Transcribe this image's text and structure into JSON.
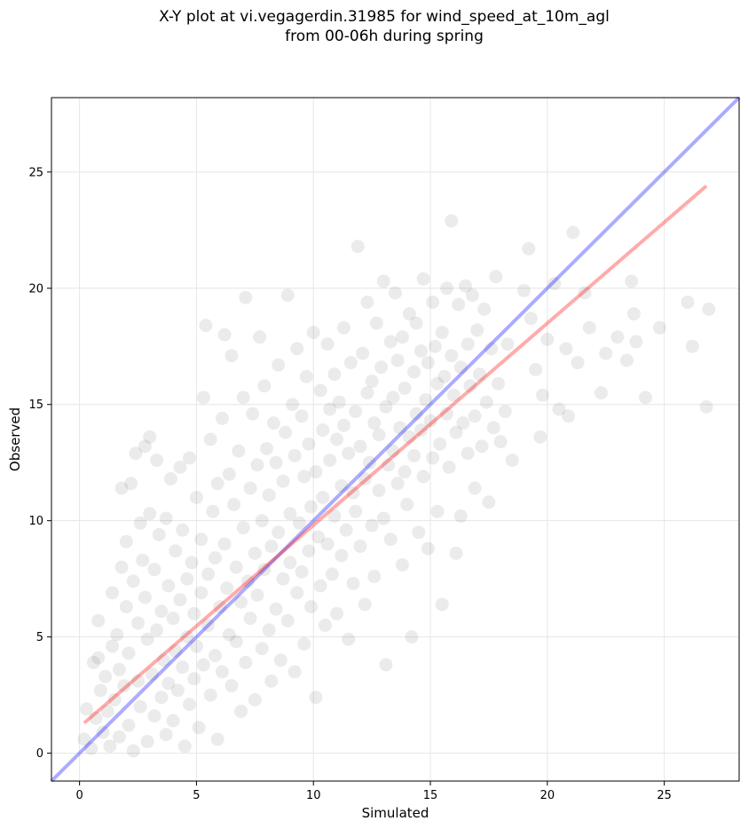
{
  "chart_data": {
    "type": "scatter",
    "title_lines": [
      "X-Y plot at vi.vegagerdin.31985 for wind_speed_at_10m_agl",
      "from 00-06h during spring"
    ],
    "xlabel": "Simulated",
    "ylabel": "Observed",
    "xlim": [
      -1.2,
      28.2
    ],
    "ylim": [
      -1.2,
      28.2
    ],
    "xticks": [
      0,
      5,
      10,
      15,
      20,
      25
    ],
    "yticks": [
      0,
      5,
      10,
      15,
      20,
      25
    ],
    "grid": true,
    "point_color": "#000000",
    "point_alpha": 0.08,
    "identity_line": {
      "color": "#0000ff",
      "x": [
        -1.2,
        28.2
      ],
      "y": [
        -1.2,
        28.2
      ]
    },
    "fit_line": {
      "color": "#ff0000",
      "x": [
        0.2,
        26.8
      ],
      "y": [
        1.3,
        24.4
      ]
    },
    "points": [
      [
        0.2,
        0.6
      ],
      [
        0.3,
        1.9
      ],
      [
        0.5,
        0.2
      ],
      [
        0.6,
        3.9
      ],
      [
        0.7,
        1.5
      ],
      [
        0.8,
        4.1
      ],
      [
        0.8,
        5.7
      ],
      [
        0.9,
        2.7
      ],
      [
        1.0,
        0.9
      ],
      [
        1.1,
        3.3
      ],
      [
        1.2,
        1.8
      ],
      [
        1.3,
        0.3
      ],
      [
        1.4,
        4.6
      ],
      [
        1.4,
        6.9
      ],
      [
        1.5,
        2.3
      ],
      [
        1.6,
        5.1
      ],
      [
        1.7,
        3.6
      ],
      [
        1.7,
        0.7
      ],
      [
        1.8,
        8.0
      ],
      [
        1.8,
        11.4
      ],
      [
        1.9,
        2.9
      ],
      [
        2.0,
        6.3
      ],
      [
        2.0,
        9.1
      ],
      [
        2.1,
        4.3
      ],
      [
        2.1,
        1.2
      ],
      [
        2.2,
        11.6
      ],
      [
        2.3,
        7.4
      ],
      [
        2.3,
        0.1
      ],
      [
        2.4,
        12.9
      ],
      [
        2.5,
        5.6
      ],
      [
        2.5,
        3.1
      ],
      [
        2.6,
        9.9
      ],
      [
        2.6,
        2.0
      ],
      [
        2.7,
        8.3
      ],
      [
        2.8,
        13.2
      ],
      [
        2.8,
        6.7
      ],
      [
        2.9,
        4.9
      ],
      [
        2.9,
        0.5
      ],
      [
        3.0,
        13.6
      ],
      [
        3.0,
        10.3
      ],
      [
        3.1,
        3.4
      ],
      [
        3.2,
        7.9
      ],
      [
        3.2,
        1.6
      ],
      [
        3.3,
        12.6
      ],
      [
        3.3,
        5.3
      ],
      [
        3.4,
        9.4
      ],
      [
        3.5,
        2.4
      ],
      [
        3.5,
        6.1
      ],
      [
        3.6,
        4.0
      ],
      [
        3.7,
        10.1
      ],
      [
        3.7,
        0.8
      ],
      [
        3.8,
        7.2
      ],
      [
        3.8,
        3.0
      ],
      [
        3.9,
        11.8
      ],
      [
        4.0,
        5.8
      ],
      [
        4.0,
        1.4
      ],
      [
        4.1,
        8.7
      ],
      [
        4.1,
        4.4
      ],
      [
        4.2,
        2.7
      ],
      [
        4.3,
        12.3
      ],
      [
        4.3,
        6.6
      ],
      [
        4.4,
        9.6
      ],
      [
        4.4,
        3.7
      ],
      [
        4.5,
        0.3
      ],
      [
        4.6,
        7.5
      ],
      [
        4.6,
        5.0
      ],
      [
        4.7,
        12.7
      ],
      [
        4.7,
        2.1
      ],
      [
        4.8,
        8.2
      ],
      [
        4.9,
        6.0
      ],
      [
        4.9,
        3.2
      ],
      [
        5.0,
        11.0
      ],
      [
        5.0,
        4.6
      ],
      [
        5.1,
        1.1
      ],
      [
        5.2,
        9.2
      ],
      [
        5.2,
        6.9
      ],
      [
        5.3,
        15.3
      ],
      [
        5.3,
        3.8
      ],
      [
        5.4,
        18.4
      ],
      [
        5.5,
        7.7
      ],
      [
        5.5,
        5.5
      ],
      [
        5.6,
        13.5
      ],
      [
        5.6,
        2.5
      ],
      [
        5.7,
        10.4
      ],
      [
        5.8,
        8.4
      ],
      [
        5.8,
        4.2
      ],
      [
        5.9,
        0.6
      ],
      [
        5.9,
        11.6
      ],
      [
        6.0,
        6.3
      ],
      [
        6.1,
        14.4
      ],
      [
        6.1,
        3.5
      ],
      [
        6.2,
        9.0
      ],
      [
        6.2,
        18.0
      ],
      [
        6.3,
        7.1
      ],
      [
        6.4,
        5.1
      ],
      [
        6.4,
        12.0
      ],
      [
        6.5,
        17.1
      ],
      [
        6.5,
        2.9
      ],
      [
        6.6,
        10.7
      ],
      [
        6.7,
        8.0
      ],
      [
        6.7,
        4.8
      ],
      [
        6.8,
        13.0
      ],
      [
        6.9,
        6.5
      ],
      [
        6.9,
        1.8
      ],
      [
        7.0,
        15.3
      ],
      [
        7.0,
        9.7
      ],
      [
        7.1,
        19.6
      ],
      [
        7.1,
        3.9
      ],
      [
        7.2,
        7.4
      ],
      [
        7.3,
        11.4
      ],
      [
        7.3,
        5.8
      ],
      [
        7.4,
        14.6
      ],
      [
        7.5,
        8.6
      ],
      [
        7.5,
        2.3
      ],
      [
        7.6,
        12.4
      ],
      [
        7.6,
        6.8
      ],
      [
        7.7,
        17.9
      ],
      [
        7.8,
        10.0
      ],
      [
        7.8,
        4.5
      ],
      [
        7.9,
        15.8
      ],
      [
        7.9,
        7.9
      ],
      [
        8.0,
        13.1
      ],
      [
        8.1,
        5.3
      ],
      [
        8.1,
        11.1
      ],
      [
        8.2,
        8.9
      ],
      [
        8.2,
        3.1
      ],
      [
        8.3,
        14.2
      ],
      [
        8.4,
        6.2
      ],
      [
        8.4,
        12.5
      ],
      [
        8.5,
        9.5
      ],
      [
        8.5,
        16.7
      ],
      [
        8.6,
        4.0
      ],
      [
        8.7,
        7.5
      ],
      [
        8.7,
        11.7
      ],
      [
        8.8,
        13.8
      ],
      [
        8.9,
        5.7
      ],
      [
        8.9,
        19.7
      ],
      [
        9.0,
        10.3
      ],
      [
        9.0,
        8.2
      ],
      [
        9.1,
        15.0
      ],
      [
        9.2,
        3.5
      ],
      [
        9.2,
        12.8
      ],
      [
        9.3,
        6.9
      ],
      [
        9.3,
        17.4
      ],
      [
        9.4,
        9.9
      ],
      [
        9.5,
        14.5
      ],
      [
        9.5,
        7.8
      ],
      [
        9.6,
        11.9
      ],
      [
        9.6,
        4.7
      ],
      [
        9.7,
        16.2
      ],
      [
        9.8,
        8.7
      ],
      [
        9.8,
        13.3
      ],
      [
        9.9,
        6.3
      ],
      [
        9.9,
        10.6
      ],
      [
        10.0,
        18.1
      ],
      [
        10.1,
        12.1
      ],
      [
        10.1,
        2.4
      ],
      [
        10.2,
        9.3
      ],
      [
        10.3,
        15.6
      ],
      [
        10.3,
        7.2
      ],
      [
        10.4,
        13.9
      ],
      [
        10.4,
        11.0
      ],
      [
        10.5,
        5.5
      ],
      [
        10.6,
        17.6
      ],
      [
        10.6,
        9.0
      ],
      [
        10.7,
        14.8
      ],
      [
        10.7,
        12.6
      ],
      [
        10.8,
        7.7
      ],
      [
        10.9,
        16.3
      ],
      [
        10.9,
        10.2
      ],
      [
        11.0,
        13.5
      ],
      [
        11.0,
        6.0
      ],
      [
        11.1,
        15.1
      ],
      [
        11.2,
        11.5
      ],
      [
        11.2,
        8.5
      ],
      [
        11.3,
        18.3
      ],
      [
        11.3,
        14.1
      ],
      [
        11.4,
        9.6
      ],
      [
        11.5,
        12.9
      ],
      [
        11.5,
        4.9
      ],
      [
        11.6,
        16.8
      ],
      [
        11.7,
        11.2
      ],
      [
        11.7,
        7.3
      ],
      [
        11.8,
        14.7
      ],
      [
        11.8,
        10.4
      ],
      [
        11.9,
        21.8
      ],
      [
        12.0,
        13.2
      ],
      [
        12.0,
        8.9
      ],
      [
        12.1,
        17.2
      ],
      [
        12.2,
        11.8
      ],
      [
        12.2,
        6.4
      ],
      [
        12.3,
        15.5
      ],
      [
        12.3,
        19.4
      ],
      [
        12.4,
        12.5
      ],
      [
        12.5,
        9.8
      ],
      [
        12.5,
        16.0
      ],
      [
        12.6,
        14.2
      ],
      [
        12.6,
        7.6
      ],
      [
        12.7,
        18.5
      ],
      [
        12.8,
        11.3
      ],
      [
        12.8,
        13.7
      ],
      [
        12.9,
        16.6
      ],
      [
        13.0,
        10.1
      ],
      [
        13.0,
        20.3
      ],
      [
        13.1,
        14.9
      ],
      [
        13.1,
        3.8
      ],
      [
        13.2,
        12.4
      ],
      [
        13.3,
        17.7
      ],
      [
        13.3,
        9.2
      ],
      [
        13.4,
        15.3
      ],
      [
        13.4,
        13.0
      ],
      [
        13.5,
        19.8
      ],
      [
        13.6,
        11.6
      ],
      [
        13.6,
        16.9
      ],
      [
        13.7,
        14.0
      ],
      [
        13.8,
        8.1
      ],
      [
        13.8,
        17.9
      ],
      [
        13.9,
        12.1
      ],
      [
        13.9,
        15.7
      ],
      [
        14.0,
        10.7
      ],
      [
        14.1,
        18.9
      ],
      [
        14.1,
        13.6
      ],
      [
        14.2,
        5.0
      ],
      [
        14.3,
        16.4
      ],
      [
        14.3,
        12.8
      ],
      [
        14.4,
        14.6
      ],
      [
        14.4,
        18.5
      ],
      [
        14.5,
        9.5
      ],
      [
        14.6,
        17.3
      ],
      [
        14.6,
        13.9
      ],
      [
        14.7,
        20.4
      ],
      [
        14.7,
        11.9
      ],
      [
        14.8,
        15.2
      ],
      [
        14.9,
        8.8
      ],
      [
        14.9,
        16.8
      ],
      [
        15.0,
        14.3
      ],
      [
        15.1,
        19.4
      ],
      [
        15.1,
        12.7
      ],
      [
        15.2,
        17.5
      ],
      [
        15.3,
        10.4
      ],
      [
        15.3,
        15.9
      ],
      [
        15.4,
        13.3
      ],
      [
        15.5,
        18.1
      ],
      [
        15.5,
        6.4
      ],
      [
        15.6,
        16.2
      ],
      [
        15.7,
        14.6
      ],
      [
        15.7,
        20.0
      ],
      [
        15.8,
        12.3
      ],
      [
        15.9,
        22.9
      ],
      [
        15.9,
        17.1
      ],
      [
        16.0,
        15.4
      ],
      [
        16.1,
        8.6
      ],
      [
        16.1,
        13.8
      ],
      [
        16.2,
        19.3
      ],
      [
        16.3,
        16.6
      ],
      [
        16.3,
        10.2
      ],
      [
        16.4,
        14.2
      ],
      [
        16.5,
        20.1
      ],
      [
        16.6,
        17.6
      ],
      [
        16.6,
        12.9
      ],
      [
        16.7,
        15.8
      ],
      [
        16.8,
        19.7
      ],
      [
        16.9,
        14.5
      ],
      [
        16.9,
        11.4
      ],
      [
        17.0,
        18.2
      ],
      [
        17.1,
        16.3
      ],
      [
        17.2,
        13.2
      ],
      [
        17.3,
        19.1
      ],
      [
        17.4,
        15.1
      ],
      [
        17.5,
        10.8
      ],
      [
        17.6,
        17.4
      ],
      [
        17.7,
        14.0
      ],
      [
        17.8,
        20.5
      ],
      [
        17.9,
        15.9
      ],
      [
        18.0,
        13.4
      ],
      [
        18.2,
        14.7
      ],
      [
        18.3,
        17.6
      ],
      [
        18.5,
        12.6
      ],
      [
        19.0,
        19.9
      ],
      [
        19.2,
        21.7
      ],
      [
        19.3,
        18.7
      ],
      [
        19.5,
        16.5
      ],
      [
        19.7,
        13.6
      ],
      [
        19.8,
        15.4
      ],
      [
        20.0,
        17.8
      ],
      [
        20.3,
        20.2
      ],
      [
        20.5,
        14.8
      ],
      [
        20.8,
        17.4
      ],
      [
        20.9,
        14.5
      ],
      [
        21.1,
        22.4
      ],
      [
        21.3,
        16.8
      ],
      [
        21.6,
        19.8
      ],
      [
        21.8,
        18.3
      ],
      [
        22.3,
        15.5
      ],
      [
        22.5,
        17.2
      ],
      [
        23.0,
        17.9
      ],
      [
        23.4,
        16.9
      ],
      [
        23.6,
        20.3
      ],
      [
        23.7,
        18.9
      ],
      [
        23.8,
        17.7
      ],
      [
        24.2,
        15.3
      ],
      [
        24.8,
        18.3
      ],
      [
        26.0,
        19.4
      ],
      [
        26.2,
        17.5
      ],
      [
        26.8,
        14.9
      ],
      [
        26.9,
        19.1
      ]
    ]
  }
}
